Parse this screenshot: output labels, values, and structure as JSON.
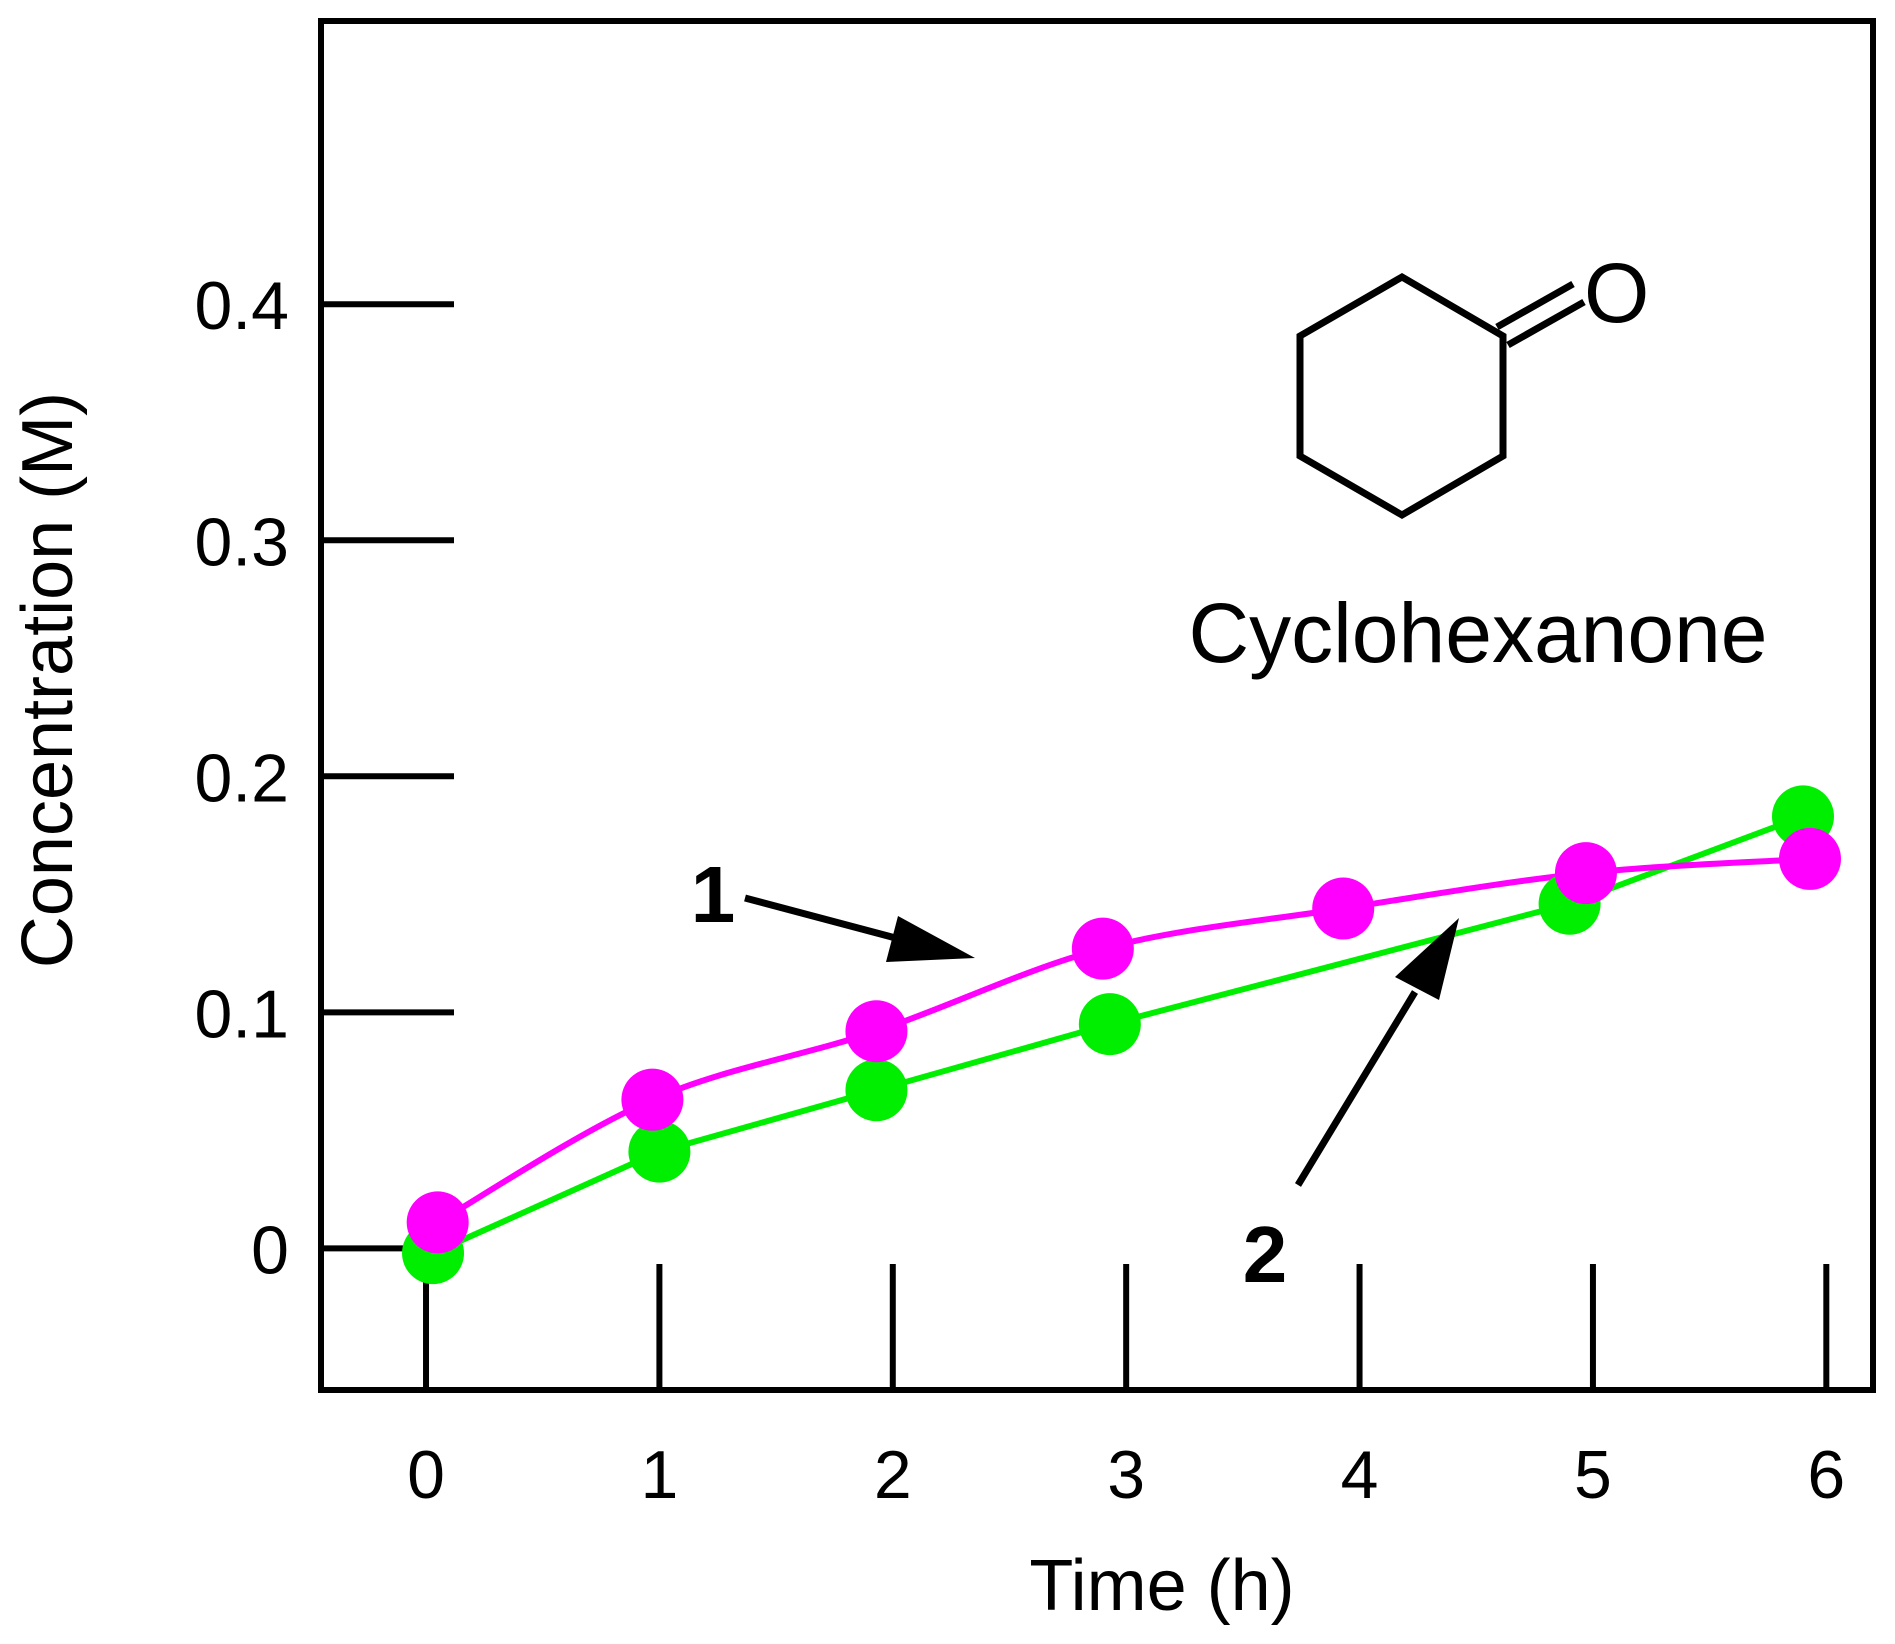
{
  "chart_data": {
    "type": "line",
    "title": "",
    "xlabel": "Time (h)",
    "ylabel": "Concentration (M)",
    "xlim": [
      -0.45,
      6.2
    ],
    "ylim": [
      -0.06,
      0.52
    ],
    "x_ticks": [
      0,
      1,
      2,
      3,
      4,
      5,
      6
    ],
    "x_tick_labels": [
      "0",
      "1",
      "2",
      "3",
      "4",
      "5",
      "6"
    ],
    "y_ticks": [
      0,
      0.1,
      0.2,
      0.3,
      0.4
    ],
    "y_tick_labels": [
      "0",
      "0.1",
      "0.2",
      "0.3",
      "0.4"
    ],
    "grid": false,
    "series": [
      {
        "callout": "1",
        "color": "#ff00ff",
        "smooth": true,
        "x": [
          0.05,
          0.97,
          1.93,
          2.9,
          3.93,
          4.97,
          5.93
        ],
        "y": [
          0.011,
          0.063,
          0.092,
          0.127,
          0.144,
          0.159,
          0.165
        ]
      },
      {
        "callout": "2",
        "color": "#00ee00",
        "smooth": false,
        "x": [
          0.03,
          1.0,
          1.93,
          2.93,
          4.9,
          5.9
        ],
        "y": [
          -0.002,
          0.041,
          0.067,
          0.095,
          0.146,
          0.183
        ]
      }
    ],
    "annotations": {
      "compound_label": "Cyclohexanone",
      "oxygen_label": "O"
    }
  }
}
